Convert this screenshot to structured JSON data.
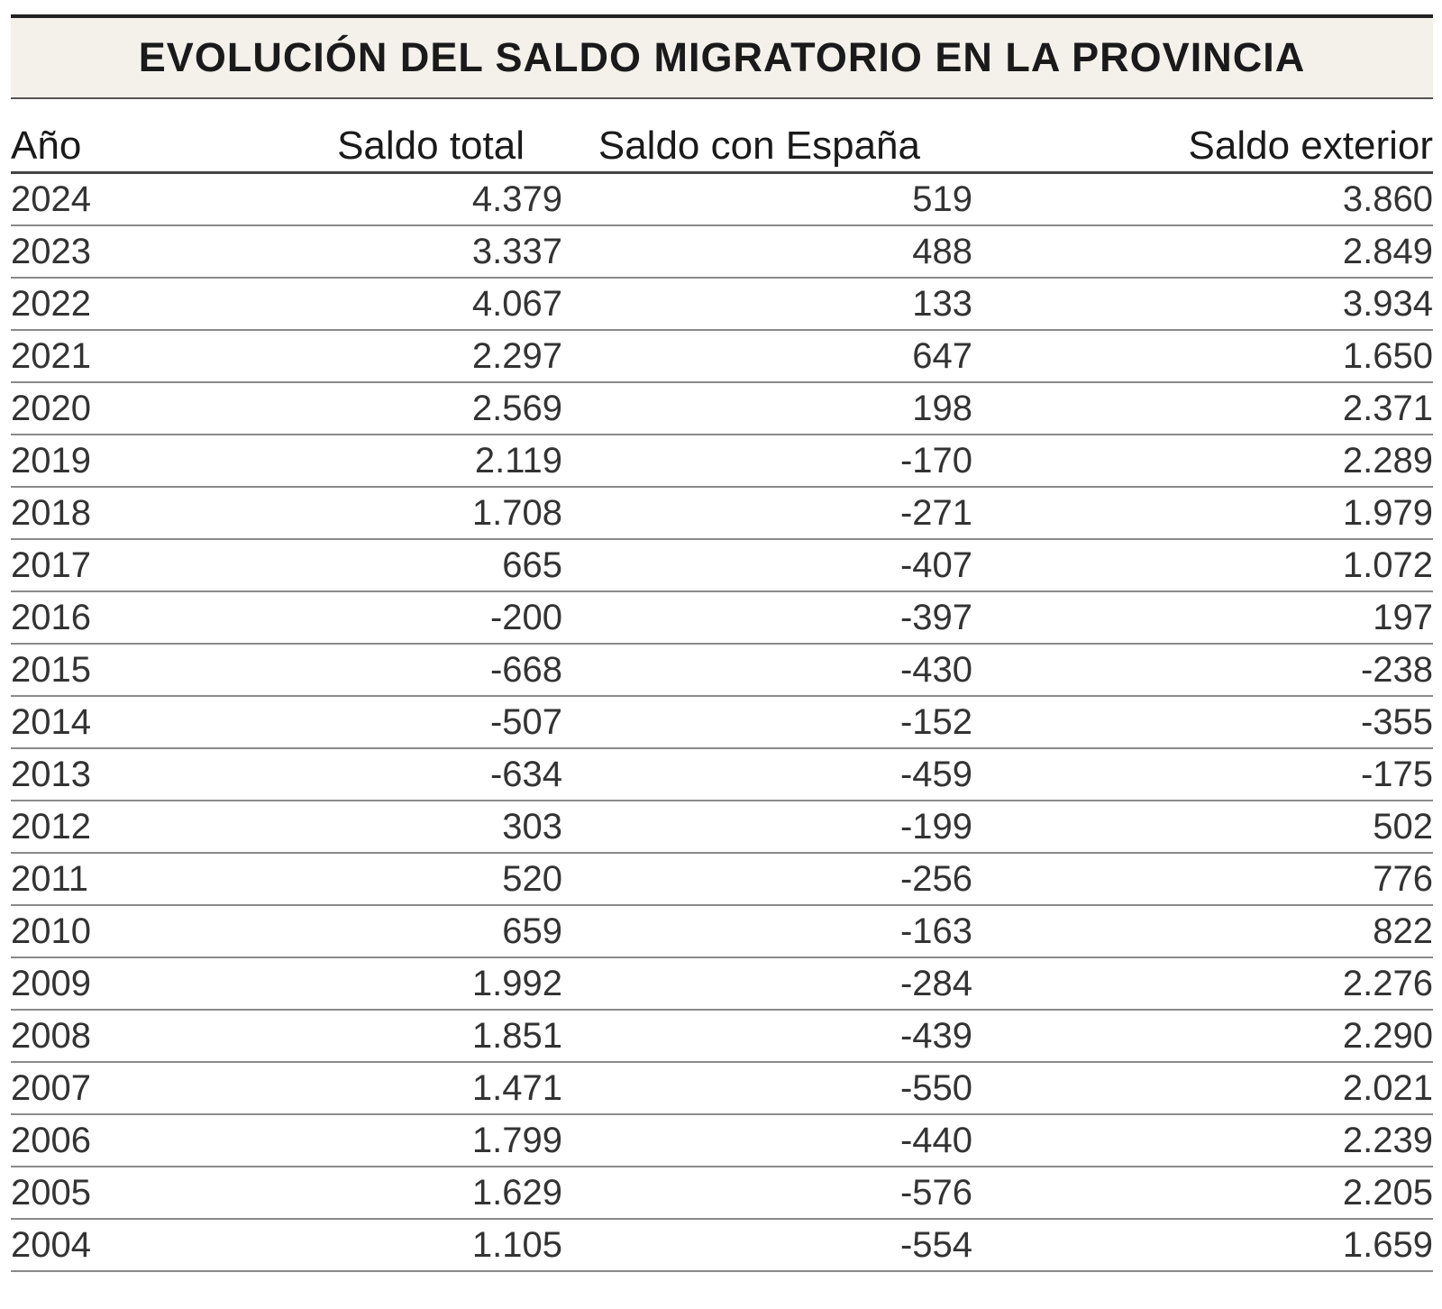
{
  "chart_data": {
    "type": "table",
    "title": "EVOLUCIÓN DEL SALDO MIGRATORIO EN LA PROVINCIA",
    "columns": [
      "Año",
      "Saldo total",
      "Saldo con España",
      "Saldo exterior"
    ],
    "rows": [
      [
        "2024",
        "4.379",
        "519",
        "3.860"
      ],
      [
        "2023",
        "3.337",
        "488",
        "2.849"
      ],
      [
        "2022",
        "4.067",
        "133",
        "3.934"
      ],
      [
        "2021",
        "2.297",
        "647",
        "1.650"
      ],
      [
        "2020",
        "2.569",
        "198",
        "2.371"
      ],
      [
        "2019",
        "2.119",
        "-170",
        "2.289"
      ],
      [
        "2018",
        "1.708",
        "-271",
        "1.979"
      ],
      [
        "2017",
        "665",
        "-407",
        "1.072"
      ],
      [
        "2016",
        "-200",
        "-397",
        "197"
      ],
      [
        "2015",
        "-668",
        "-430",
        "-238"
      ],
      [
        "2014",
        "-507",
        "-152",
        "-355"
      ],
      [
        "2013",
        "-634",
        "-459",
        "-175"
      ],
      [
        "2012",
        "303",
        "-199",
        "502"
      ],
      [
        "2011",
        "520",
        "-256",
        "776"
      ],
      [
        "2010",
        "659",
        "-163",
        "822"
      ],
      [
        "2009",
        "1.992",
        "-284",
        "2.276"
      ],
      [
        "2008",
        "1.851",
        "-439",
        "2.290"
      ],
      [
        "2007",
        "1.471",
        "-550",
        "2.021"
      ],
      [
        "2006",
        "1.799",
        "-440",
        "2.239"
      ],
      [
        "2005",
        "1.629",
        "-576",
        "2.205"
      ],
      [
        "2004",
        "1.105",
        "-554",
        "1.659"
      ]
    ]
  }
}
